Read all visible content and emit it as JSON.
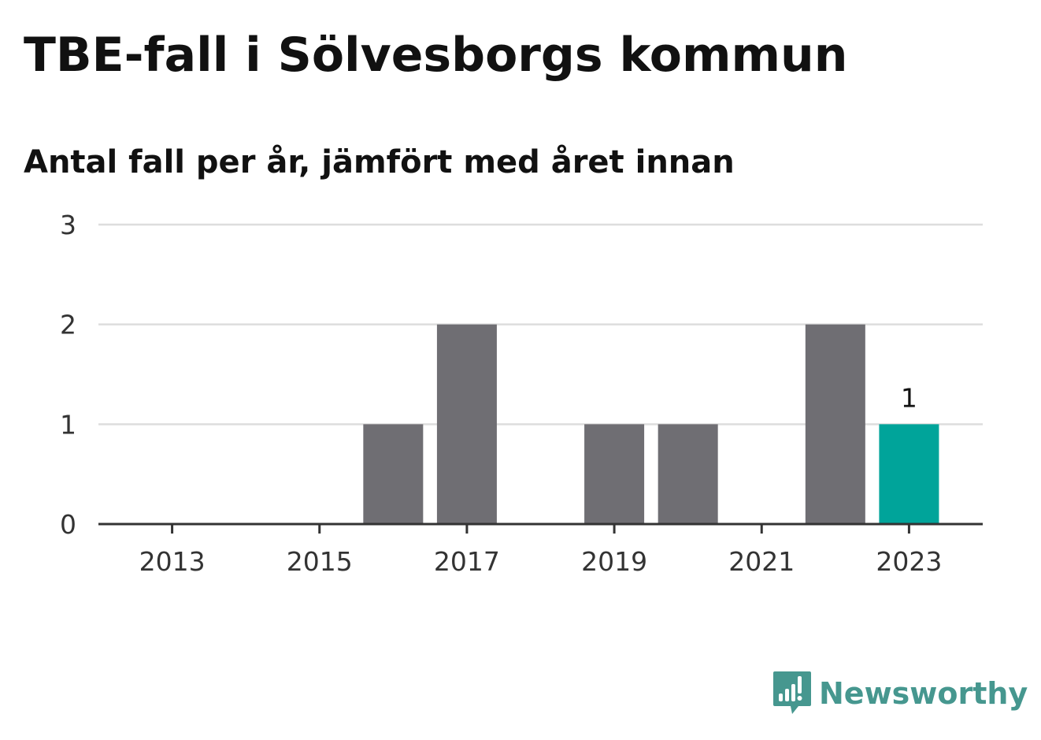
{
  "title": "TBE-fall i Sölvesborgs kommun",
  "subtitle": "Antal fall per år, jämfört med året innan",
  "colors": {
    "bar": "#6f6e73",
    "highlight": "#00a49a",
    "grid": "#dddddd",
    "axis": "#333333",
    "brand": "#46978f"
  },
  "brand": {
    "name": "Newsworthy",
    "icon": "newsworthy-logo-icon"
  },
  "chart_data": {
    "type": "bar",
    "categories": [
      "2013",
      "2014",
      "2015",
      "2016",
      "2017",
      "2018",
      "2019",
      "2020",
      "2021",
      "2022",
      "2023"
    ],
    "values": [
      0,
      0,
      0,
      1,
      2,
      0,
      1,
      1,
      0,
      2,
      1
    ],
    "highlight_index": 10,
    "data_labels": [
      {
        "category": "2023",
        "label": "1"
      }
    ],
    "x_tick_labels": [
      "2013",
      "2015",
      "2017",
      "2019",
      "2021",
      "2023"
    ],
    "y_ticks": [
      0,
      1,
      2,
      3
    ],
    "ylim": [
      0,
      3
    ],
    "xlabel": "",
    "ylabel": "",
    "grid": true,
    "legend": "none"
  }
}
